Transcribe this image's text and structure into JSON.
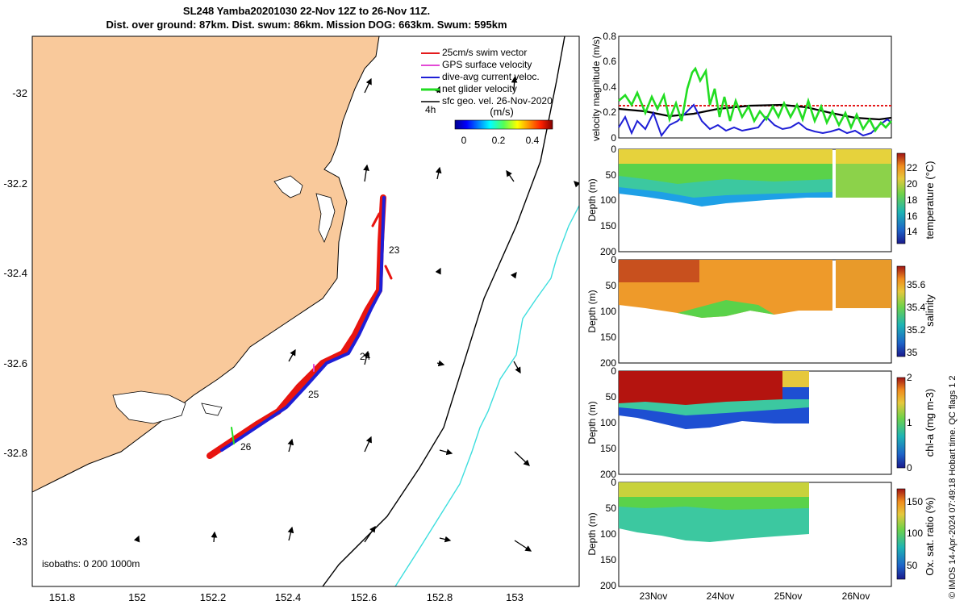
{
  "title": {
    "line1": "SL248 Yamba20201030 22-Nov 12Z to 26-Nov 11Z.",
    "line2": "Dist. over ground: 87km. Dist. swum: 86km. Mission DOG: 663km. Swum: 595km"
  },
  "map": {
    "xticks": [
      "151.8",
      "152",
      "152.2",
      "152.4",
      "152.6",
      "152.8",
      "153"
    ],
    "yticks": [
      "-32",
      "-32.2",
      "-32.4",
      "-32.6",
      "-32.8",
      "-33"
    ],
    "day_labels": [
      "23",
      "24",
      "25",
      "26"
    ],
    "isobath_text": "isobaths: 0   200  1000m",
    "colors": {
      "land": "#f9c99b",
      "isobath_200": "#000000",
      "isobath_1000": "#3ddede"
    },
    "legend": {
      "items": [
        {
          "label": "25cm/s swim vector",
          "color": "#e41a1c"
        },
        {
          "label": "GPS surface velocity",
          "color": "#e34ad6"
        },
        {
          "label": "dive-avg current veloc.",
          "color": "#1f1fd6"
        },
        {
          "label": "net glider velocity",
          "color": "#22dd22"
        },
        {
          "label": "sfc geo. vel. 26-Nov-2020",
          "color": "#000000"
        }
      ],
      "note": "4h",
      "colorbar_title": "(m/s)",
      "colorbar_ticks": [
        "0",
        "0.2",
        "0.4"
      ]
    }
  },
  "velocity_panel": {
    "ylabel": "velocity magnitude (m/s)",
    "yticks": [
      "0",
      "0.2",
      "0.4",
      "0.6",
      "0.8"
    ]
  },
  "sections": [
    {
      "id": "temperature",
      "cblabel": "temperature (°C)",
      "ticks": [
        "22",
        "20",
        "18",
        "16",
        "14"
      ]
    },
    {
      "id": "salinity",
      "cblabel": "salinity",
      "ticks": [
        "35.6",
        "35.4",
        "35.2",
        "35"
      ]
    },
    {
      "id": "chla",
      "cblabel": "chl-a (mg m-3)",
      "ticks": [
        "2",
        "1",
        "0"
      ]
    },
    {
      "id": "oxygen",
      "cblabel": "Ox. sat. ratio (%)",
      "ticks": [
        "150",
        "100",
        "50"
      ]
    }
  ],
  "depth_label": "Depth (m)",
  "depth_ticks": [
    "0",
    "50",
    "100",
    "150",
    "200"
  ],
  "time_ticks": [
    "23Nov",
    "24Nov",
    "25Nov",
    "26Nov"
  ],
  "credit": "© IMOS 14-Apr-2024 07:49:18 Hobart time. QC flags 1  2"
}
